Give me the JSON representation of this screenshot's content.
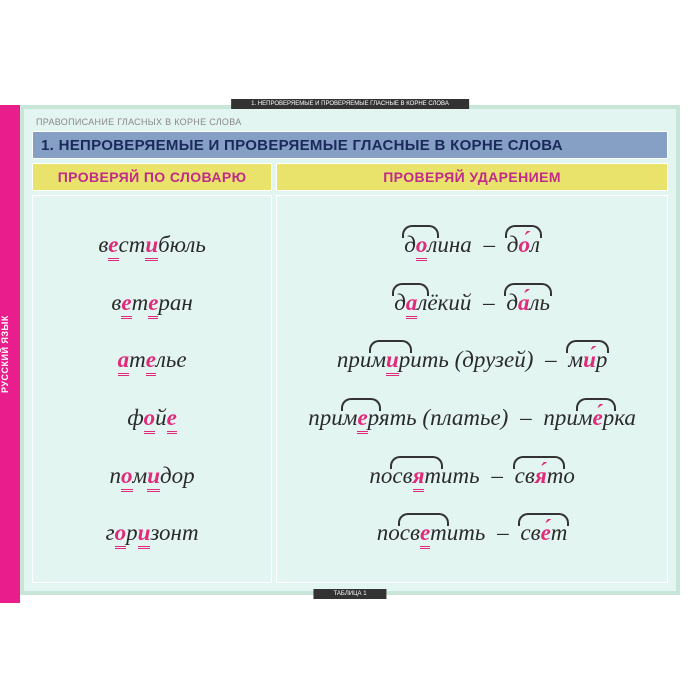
{
  "colors": {
    "frame_border": "#c7e6d8",
    "card_bg": "#e3f5f1",
    "title_bg": "#85a0c4",
    "header_bg": "#e9e36b",
    "highlight": "#e02a7a",
    "spine_bg": "#e91e8c",
    "text": "#2a2a2a"
  },
  "typography": {
    "body_font": "Georgia, serif",
    "body_size_pt": 17,
    "body_style": "italic",
    "header_font": "Arial, sans-serif"
  },
  "spine": {
    "text": "РУССКИЙ ЯЗЫК"
  },
  "pretitle": "ПРАВОПИСАНИЕ ГЛАСНЫХ В КОРНЕ СЛОВА",
  "top_tab": "1. НЕПРОВЕРЯЕМЫЕ И ПРОВЕРЯЕМЫЕ ГЛАСНЫЕ В КОРНЕ СЛОВА",
  "bottom_tab": "ТАБЛИЦА 1",
  "title": "1. НЕПРОВЕРЯЕМЫЕ И ПРОВЕРЯЕМЫЕ ГЛАСНЫЕ В КОРНЕ СЛОВА",
  "columns": {
    "left_header": "ПРОВЕРЯЙ ПО СЛОВАРЮ",
    "right_header": "ПРОВЕРЯЙ УДАРЕНИЕМ",
    "left_words": [
      {
        "pre": "в",
        "hl1": "е",
        "mid1": "ст",
        "hl2": "и",
        "post": "бюль"
      },
      {
        "pre": "в",
        "hl1": "е",
        "mid1": "т",
        "hl2": "е",
        "post": "ран"
      },
      {
        "pre": "",
        "hl1": "а",
        "mid1": "т",
        "hl2": "е",
        "post": "лье"
      },
      {
        "pre": "ф",
        "hl1": "о",
        "mid1": "й",
        "hl2": "е",
        "post": ""
      },
      {
        "pre": "п",
        "hl1": "о",
        "mid1": "м",
        "hl2": "и",
        "post": "дор"
      },
      {
        "pre": "г",
        "hl1": "о",
        "mid1": "р",
        "hl2": "и",
        "post": "зонт"
      }
    ],
    "right_pairs": [
      {
        "w1_pre": "",
        "w1_root_pre": "д",
        "w1_hl": "о",
        "w1_root_post": "л",
        "w1_post": "ина",
        "w2_pre": "",
        "w2_root_pre": "д",
        "w2_hl": "о",
        "w2_root_post": "л",
        "w2_post": "",
        "paren": ""
      },
      {
        "w1_pre": "",
        "w1_root_pre": "д",
        "w1_hl": "а",
        "w1_root_post": "л",
        "w1_post": "ёкий",
        "w2_pre": "",
        "w2_root_pre": "д",
        "w2_hl": "а",
        "w2_root_post": "ль",
        "w2_post": "",
        "paren": ""
      },
      {
        "w1_pre": "при",
        "w1_root_pre": "м",
        "w1_hl": "и",
        "w1_root_post": "р",
        "w1_post": "ить",
        "w2_pre": "",
        "w2_root_pre": "м",
        "w2_hl": "и",
        "w2_root_post": "р",
        "w2_post": "",
        "paren": " (друзей)"
      },
      {
        "w1_pre": "при",
        "w1_root_pre": "м",
        "w1_hl": "е",
        "w1_root_post": "р",
        "w1_post": "ять",
        "w2_pre": "при",
        "w2_root_pre": "м",
        "w2_hl": "е",
        "w2_root_post": "р",
        "w2_post": "ка",
        "paren": " (платье)"
      },
      {
        "w1_pre": "по",
        "w1_root_pre": "св",
        "w1_hl": "я",
        "w1_root_post": "т",
        "w1_post": "ить",
        "w2_pre": "",
        "w2_root_pre": "св",
        "w2_hl": "я",
        "w2_root_post": "т",
        "w2_post": "о",
        "paren": ""
      },
      {
        "w1_pre": "по",
        "w1_root_pre": "св",
        "w1_hl": "е",
        "w1_root_post": "т",
        "w1_post": "ить",
        "w2_pre": "",
        "w2_root_pre": "св",
        "w2_hl": "е",
        "w2_root_post": "т",
        "w2_post": "",
        "paren": ""
      }
    ]
  }
}
